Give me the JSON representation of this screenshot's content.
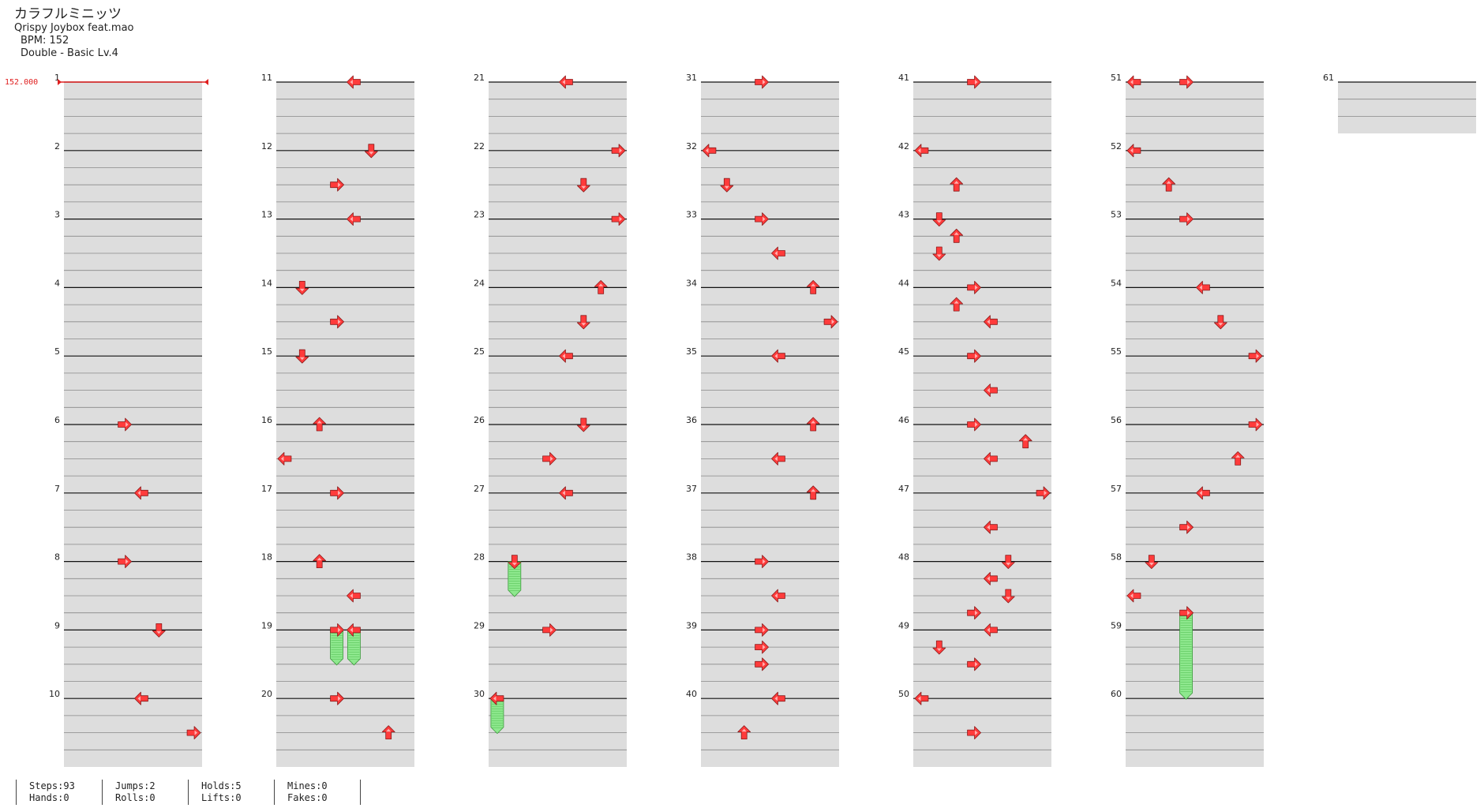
{
  "song": {
    "title": "カラフルミニッツ",
    "artist": "Qrispy Joybox feat.mao",
    "bpm_label": "BPM: 152",
    "chart_label": "Double - Basic  Lv.4"
  },
  "bpm_marker": "152.000",
  "stats": {
    "steps": "Steps:93",
    "jumps": "Jumps:2",
    "holds": "Holds:5",
    "mines": "Mines:0",
    "hands": "Hands:0",
    "rolls": "Rolls:0",
    "lifts": "Lifts:0",
    "fakes": "Fakes:0"
  },
  "measure_numbers": [
    "1",
    "2",
    "3",
    "4",
    "5",
    "6",
    "7",
    "8",
    "9",
    "10",
    "11",
    "12",
    "13",
    "14",
    "15",
    "16",
    "17",
    "18",
    "19",
    "20",
    "21",
    "22",
    "23",
    "24",
    "25",
    "26",
    "27",
    "28",
    "29",
    "30",
    "31",
    "32",
    "33",
    "34",
    "35",
    "36",
    "37",
    "38",
    "39",
    "40",
    "41",
    "42",
    "43",
    "44",
    "45",
    "46",
    "47",
    "48",
    "49",
    "50",
    "51",
    "52",
    "53",
    "54",
    "55",
    "56",
    "57",
    "58",
    "59",
    "60",
    "61"
  ],
  "arrow_colors": {
    "note": "#ff3b3b",
    "hold": "#8ee88e"
  },
  "notes": [
    {
      "m": 6,
      "b": 0,
      "lane": 3,
      "dir": "right"
    },
    {
      "m": 7,
      "b": 0,
      "lane": 4,
      "dir": "left"
    },
    {
      "m": 8,
      "b": 0,
      "lane": 3,
      "dir": "right"
    },
    {
      "m": 9,
      "b": 0,
      "lane": 5,
      "dir": "down"
    },
    {
      "m": 10,
      "b": 0,
      "lane": 4,
      "dir": "left"
    },
    {
      "m": 10,
      "b": 2,
      "lane": 7,
      "dir": "right"
    },
    {
      "m": 11,
      "b": 0,
      "lane": 4,
      "dir": "left"
    },
    {
      "m": 12,
      "b": 0,
      "lane": 5,
      "dir": "down"
    },
    {
      "m": 12,
      "b": 2,
      "lane": 3,
      "dir": "right"
    },
    {
      "m": 13,
      "b": 0,
      "lane": 4,
      "dir": "left"
    },
    {
      "m": 14,
      "b": 0,
      "lane": 1,
      "dir": "down"
    },
    {
      "m": 14,
      "b": 2,
      "lane": 3,
      "dir": "right"
    },
    {
      "m": 15,
      "b": 0,
      "lane": 1,
      "dir": "down"
    },
    {
      "m": 16,
      "b": 0,
      "lane": 2,
      "dir": "up"
    },
    {
      "m": 16,
      "b": 2,
      "lane": 0,
      "dir": "left"
    },
    {
      "m": 17,
      "b": 0,
      "lane": 3,
      "dir": "right"
    },
    {
      "m": 18,
      "b": 0,
      "lane": 2,
      "dir": "up"
    },
    {
      "m": 18,
      "b": 2,
      "lane": 4,
      "dir": "left"
    },
    {
      "m": 19,
      "b": 0,
      "lane": 3,
      "dir": "right"
    },
    {
      "m": 19,
      "b": 0,
      "lane": 4,
      "dir": "left"
    },
    {
      "m": 20,
      "b": 0,
      "lane": 3,
      "dir": "right"
    },
    {
      "m": 20,
      "b": 2,
      "lane": 6,
      "dir": "up"
    },
    {
      "m": 21,
      "b": 0,
      "lane": 4,
      "dir": "left"
    },
    {
      "m": 22,
      "b": 0,
      "lane": 7,
      "dir": "right"
    },
    {
      "m": 22,
      "b": 2,
      "lane": 5,
      "dir": "down"
    },
    {
      "m": 23,
      "b": 0,
      "lane": 7,
      "dir": "right"
    },
    {
      "m": 24,
      "b": 0,
      "lane": 6,
      "dir": "up"
    },
    {
      "m": 24,
      "b": 2,
      "lane": 5,
      "dir": "down"
    },
    {
      "m": 25,
      "b": 0,
      "lane": 4,
      "dir": "left"
    },
    {
      "m": 26,
      "b": 0,
      "lane": 5,
      "dir": "down"
    },
    {
      "m": 26,
      "b": 2,
      "lane": 3,
      "dir": "right"
    },
    {
      "m": 27,
      "b": 0,
      "lane": 4,
      "dir": "left"
    },
    {
      "m": 28,
      "b": 0,
      "lane": 1,
      "dir": "down"
    },
    {
      "m": 29,
      "b": 0,
      "lane": 3,
      "dir": "right"
    },
    {
      "m": 30,
      "b": 0,
      "lane": 0,
      "dir": "left"
    },
    {
      "m": 31,
      "b": 0,
      "lane": 3,
      "dir": "right"
    },
    {
      "m": 32,
      "b": 0,
      "lane": 0,
      "dir": "left"
    },
    {
      "m": 32,
      "b": 2,
      "lane": 1,
      "dir": "down"
    },
    {
      "m": 33,
      "b": 0,
      "lane": 3,
      "dir": "right"
    },
    {
      "m": 33,
      "b": 2,
      "lane": 4,
      "dir": "left"
    },
    {
      "m": 34,
      "b": 0,
      "lane": 6,
      "dir": "up"
    },
    {
      "m": 34,
      "b": 2,
      "lane": 7,
      "dir": "right"
    },
    {
      "m": 35,
      "b": 0,
      "lane": 4,
      "dir": "left"
    },
    {
      "m": 36,
      "b": 0,
      "lane": 6,
      "dir": "up"
    },
    {
      "m": 36,
      "b": 2,
      "lane": 4,
      "dir": "left"
    },
    {
      "m": 37,
      "b": 0,
      "lane": 6,
      "dir": "up"
    },
    {
      "m": 38,
      "b": 0,
      "lane": 3,
      "dir": "right"
    },
    {
      "m": 38,
      "b": 2,
      "lane": 4,
      "dir": "left"
    },
    {
      "m": 39,
      "b": 0,
      "lane": 3,
      "dir": "right"
    },
    {
      "m": 39,
      "b": 1,
      "lane": 3,
      "dir": "right"
    },
    {
      "m": 39,
      "b": 2,
      "lane": 3,
      "dir": "right"
    },
    {
      "m": 40,
      "b": 0,
      "lane": 4,
      "dir": "left"
    },
    {
      "m": 40,
      "b": 2,
      "lane": 2,
      "dir": "up"
    },
    {
      "m": 41,
      "b": 0,
      "lane": 3,
      "dir": "right"
    },
    {
      "m": 42,
      "b": 0,
      "lane": 0,
      "dir": "left"
    },
    {
      "m": 42,
      "b": 2,
      "lane": 2,
      "dir": "up"
    },
    {
      "m": 43,
      "b": 0,
      "lane": 1,
      "dir": "down"
    },
    {
      "m": 43,
      "b": 1,
      "lane": 2,
      "dir": "up"
    },
    {
      "m": 43,
      "b": 2,
      "lane": 1,
      "dir": "down"
    },
    {
      "m": 44,
      "b": 0,
      "lane": 3,
      "dir": "right"
    },
    {
      "m": 44,
      "b": 1,
      "lane": 2,
      "dir": "up"
    },
    {
      "m": 44,
      "b": 2,
      "lane": 4,
      "dir": "left"
    },
    {
      "m": 45,
      "b": 0,
      "lane": 3,
      "dir": "right"
    },
    {
      "m": 45,
      "b": 2,
      "lane": 4,
      "dir": "left"
    },
    {
      "m": 46,
      "b": 0,
      "lane": 3,
      "dir": "right"
    },
    {
      "m": 46,
      "b": 1,
      "lane": 6,
      "dir": "up"
    },
    {
      "m": 46,
      "b": 2,
      "lane": 4,
      "dir": "left"
    },
    {
      "m": 47,
      "b": 0,
      "lane": 7,
      "dir": "right"
    },
    {
      "m": 47,
      "b": 2,
      "lane": 4,
      "dir": "left"
    },
    {
      "m": 48,
      "b": 0,
      "lane": 5,
      "dir": "down"
    },
    {
      "m": 48,
      "b": 1,
      "lane": 4,
      "dir": "left"
    },
    {
      "m": 48,
      "b": 2,
      "lane": 5,
      "dir": "down"
    },
    {
      "m": 48,
      "b": 3,
      "lane": 3,
      "dir": "right"
    },
    {
      "m": 49,
      "b": 0,
      "lane": 4,
      "dir": "left"
    },
    {
      "m": 49,
      "b": 1,
      "lane": 1,
      "dir": "down"
    },
    {
      "m": 49,
      "b": 2,
      "lane": 3,
      "dir": "right"
    },
    {
      "m": 50,
      "b": 0,
      "lane": 0,
      "dir": "left"
    },
    {
      "m": 50,
      "b": 2,
      "lane": 3,
      "dir": "right"
    },
    {
      "m": 51,
      "b": 0,
      "lane": 0,
      "dir": "left"
    },
    {
      "m": 51,
      "b": 0,
      "lane": 3,
      "dir": "right"
    },
    {
      "m": 52,
      "b": 0,
      "lane": 0,
      "dir": "left"
    },
    {
      "m": 52,
      "b": 2,
      "lane": 2,
      "dir": "up"
    },
    {
      "m": 53,
      "b": 0,
      "lane": 3,
      "dir": "right"
    },
    {
      "m": 54,
      "b": 0,
      "lane": 4,
      "dir": "left"
    },
    {
      "m": 54,
      "b": 2,
      "lane": 5,
      "dir": "down"
    },
    {
      "m": 55,
      "b": 0,
      "lane": 7,
      "dir": "right"
    },
    {
      "m": 56,
      "b": 0,
      "lane": 7,
      "dir": "right"
    },
    {
      "m": 56,
      "b": 2,
      "lane": 6,
      "dir": "up"
    },
    {
      "m": 57,
      "b": 0,
      "lane": 4,
      "dir": "left"
    },
    {
      "m": 57,
      "b": 2,
      "lane": 3,
      "dir": "right"
    },
    {
      "m": 58,
      "b": 0,
      "lane": 1,
      "dir": "down"
    },
    {
      "m": 58,
      "b": 2,
      "lane": 0,
      "dir": "left"
    },
    {
      "m": 58,
      "b": 3,
      "lane": 3,
      "dir": "right"
    }
  ],
  "holds": [
    {
      "m": 19,
      "b": 0,
      "lane": 3,
      "len": 2
    },
    {
      "m": 19,
      "b": 0,
      "lane": 4,
      "len": 2
    },
    {
      "m": 28,
      "b": 0,
      "lane": 1,
      "len": 2
    },
    {
      "m": 30,
      "b": 0,
      "lane": 0,
      "len": 2
    },
    {
      "m": 58,
      "b": 3,
      "lane": 3,
      "len": 5
    }
  ]
}
